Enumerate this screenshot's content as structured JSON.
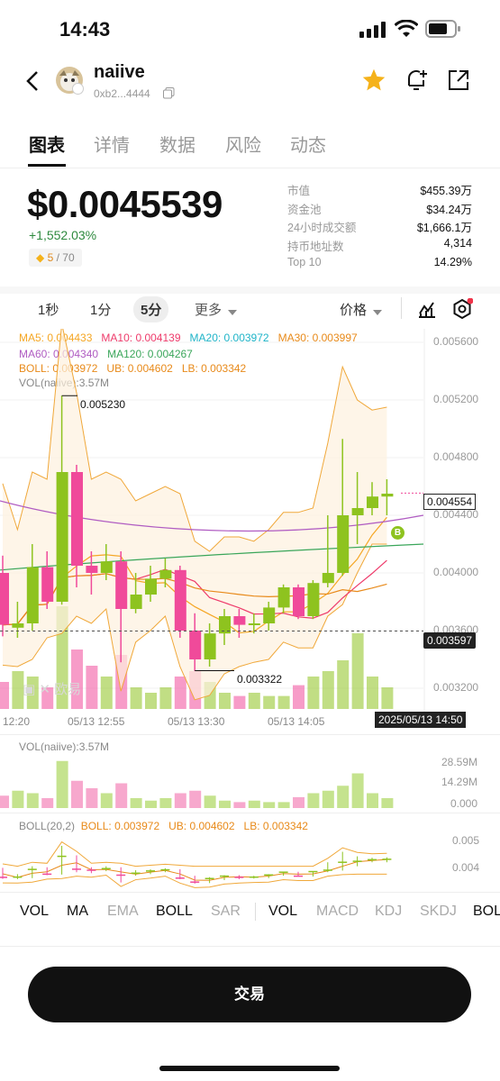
{
  "status_bar": {
    "time": "14:43"
  },
  "header": {
    "token_name": "naiive",
    "address": "0xb2...4444"
  },
  "tabs": [
    "图表",
    "详情",
    "数据",
    "风险",
    "动态"
  ],
  "price_block": {
    "price": "$0.0045539",
    "change": "+1,552.03%",
    "rank_value": "5",
    "rank_total": "/ 70"
  },
  "stats": [
    {
      "label": "市值",
      "value": "$455.39万"
    },
    {
      "label": "资金池",
      "value": "$34.24万"
    },
    {
      "label": "24小时成交额",
      "value": "$1,666.1万"
    },
    {
      "label": "持币地址数",
      "value": "4,314"
    },
    {
      "label": "Top 10",
      "value": "14.29%"
    }
  ],
  "intervals": [
    "1秒",
    "1分",
    "5分",
    "更多"
  ],
  "price_selector": "价格",
  "indicators": {
    "ma5": "MA5: 0.004433",
    "ma10": "MA10: 0.004139",
    "ma20": "MA20: 0.003972",
    "ma30": "MA30: 0.003997",
    "ma60": "MA60: 0.004340",
    "ma120": "MA120: 0.004267",
    "boll": "BOLL: 0.003972",
    "ub": "UB: 0.004602",
    "lb": "LB: 0.003342",
    "vol": "VOL(naiive):3.57M"
  },
  "chart_data": {
    "type": "candlestick",
    "y_axis_ticks": [
      "0.005600",
      "0.005200",
      "0.004800",
      "0.004400",
      "0.004000",
      "0.003600",
      "0.003200"
    ],
    "x_axis_ticks": [
      "12:20",
      "05/13 12:55",
      "05/13 13:30",
      "05/13 14:05"
    ],
    "current_time": "2025/05/13 14:50",
    "high_marker": "0.005230",
    "low_marker": "0.003322",
    "current_price_tag": "0.004554",
    "crosshair_price_tag": "0.003597",
    "watermark": "欧易",
    "candles": [
      {
        "o": 0.004,
        "c": 0.00364,
        "h": 0.00412,
        "l": 0.00356
      },
      {
        "o": 0.00362,
        "c": 0.00365,
        "h": 0.0038,
        "l": 0.00355
      },
      {
        "o": 0.00365,
        "c": 0.00404,
        "h": 0.0042,
        "l": 0.0036
      },
      {
        "o": 0.00404,
        "c": 0.0038,
        "h": 0.00415,
        "l": 0.00375
      },
      {
        "o": 0.0038,
        "c": 0.0047,
        "h": 0.00523,
        "l": 0.00378
      },
      {
        "o": 0.0047,
        "c": 0.00405,
        "h": 0.00475,
        "l": 0.0039
      },
      {
        "o": 0.00405,
        "c": 0.004,
        "h": 0.00415,
        "l": 0.00385
      },
      {
        "o": 0.004,
        "c": 0.00408,
        "h": 0.0042,
        "l": 0.00395
      },
      {
        "o": 0.00408,
        "c": 0.00375,
        "h": 0.00415,
        "l": 0.00338
      },
      {
        "o": 0.00375,
        "c": 0.00385,
        "h": 0.004,
        "l": 0.00372
      },
      {
        "o": 0.00385,
        "c": 0.00396,
        "h": 0.00405,
        "l": 0.0038
      },
      {
        "o": 0.00396,
        "c": 0.00402,
        "h": 0.0041,
        "l": 0.0039
      },
      {
        "o": 0.00402,
        "c": 0.0036,
        "h": 0.00405,
        "l": 0.00355
      },
      {
        "o": 0.0036,
        "c": 0.0034,
        "h": 0.00372,
        "l": 0.00332
      },
      {
        "o": 0.0034,
        "c": 0.00358,
        "h": 0.00365,
        "l": 0.00335
      },
      {
        "o": 0.00358,
        "c": 0.0037,
        "h": 0.00375,
        "l": 0.0035
      },
      {
        "o": 0.0037,
        "c": 0.00364,
        "h": 0.00375,
        "l": 0.00355
      },
      {
        "o": 0.00364,
        "c": 0.00365,
        "h": 0.00372,
        "l": 0.00358
      },
      {
        "o": 0.00365,
        "c": 0.00376,
        "h": 0.0038,
        "l": 0.0036
      },
      {
        "o": 0.00376,
        "c": 0.0039,
        "h": 0.00392,
        "l": 0.00372
      },
      {
        "o": 0.0039,
        "c": 0.0037,
        "h": 0.00392,
        "l": 0.00368
      },
      {
        "o": 0.0037,
        "c": 0.00393,
        "h": 0.00395,
        "l": 0.00368
      },
      {
        "o": 0.00393,
        "c": 0.004,
        "h": 0.0044,
        "l": 0.0039
      },
      {
        "o": 0.004,
        "c": 0.0044,
        "h": 0.00493,
        "l": 0.00398
      },
      {
        "o": 0.0044,
        "c": 0.00445,
        "h": 0.0047,
        "l": 0.0042
      },
      {
        "o": 0.00445,
        "c": 0.00453,
        "h": 0.00463,
        "l": 0.0044
      },
      {
        "o": 0.00453,
        "c": 0.00455,
        "h": 0.00465,
        "l": 0.0044
      }
    ],
    "volumes": [
      0.25,
      0.35,
      0.3,
      0.2,
      0.95,
      0.55,
      0.4,
      0.3,
      0.5,
      0.2,
      0.15,
      0.2,
      0.3,
      0.35,
      0.25,
      0.15,
      0.12,
      0.15,
      0.12,
      0.12,
      0.22,
      0.3,
      0.35,
      0.45,
      0.7,
      0.3,
      0.2
    ]
  },
  "vol_panel": {
    "label": "VOL(naiive):3.57M",
    "ticks": [
      "28.59M",
      "14.29M",
      "0.000"
    ]
  },
  "boll_panel": {
    "label": "BOLL(20,2)",
    "boll": "BOLL: 0.003972",
    "ub": "UB: 0.004602",
    "lb": "LB: 0.003342",
    "ticks": [
      "0.005",
      "0.004"
    ]
  },
  "indicator_tabs": [
    "VOL",
    "MA",
    "EMA",
    "BOLL",
    "SAR",
    "VOL",
    "MACD",
    "KDJ",
    "SKDJ",
    "BOL"
  ],
  "trade_button": "交易",
  "colors": {
    "up": "#8ec31f",
    "down": "#f04a9a",
    "accent": "#f5b21a"
  }
}
